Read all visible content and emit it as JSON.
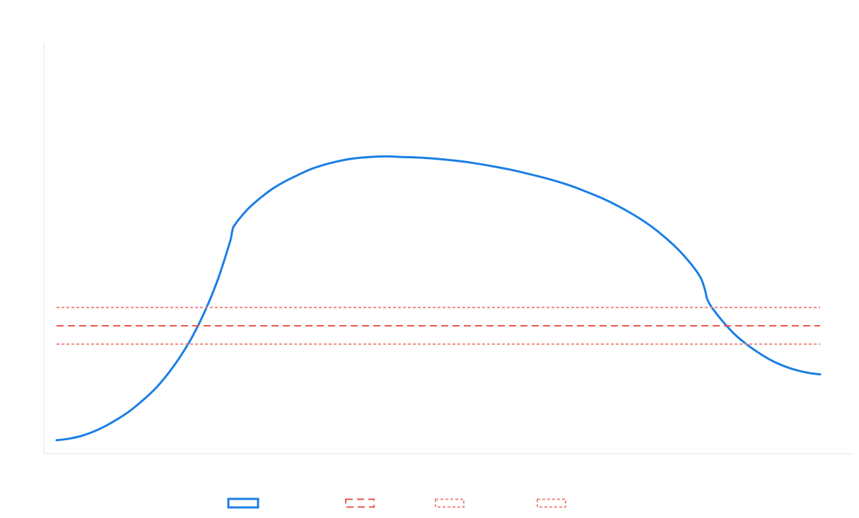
{
  "chart_data": {
    "type": "line",
    "title": "",
    "xlabel": "",
    "ylabel": "",
    "xlim": [
      0,
      100
    ],
    "ylim": [
      0,
      100
    ],
    "grid": false,
    "legend_position": "bottom",
    "series": [
      {
        "color": "#1a7ee6",
        "style": "solid",
        "x": [
          0,
          1.6,
          3.2,
          4.9,
          6.5,
          8.1,
          9.7,
          11.3,
          13,
          14.6,
          16.2,
          17.8,
          19.4,
          21.1,
          22.7,
          23,
          23.3,
          25,
          26.7,
          28.3,
          30,
          31.7,
          33.3,
          35,
          36.7,
          38.3,
          40,
          41.7,
          43.3,
          45,
          47.4,
          49.8,
          52.2,
          54.6,
          57,
          59.5,
          61.9,
          64.3,
          66.7,
          69.1,
          71.6,
          74,
          76.4,
          78.8,
          81.2,
          83.2,
          84.4,
          85,
          85.2,
          85.8,
          87.3,
          88.9,
          90.6,
          92.3,
          93.9,
          95.6,
          97.3,
          98.9,
          100
        ],
        "y": [
          0,
          0.5,
          1.4,
          2.9,
          4.8,
          7.1,
          9.8,
          13.1,
          17.1,
          21.8,
          27.4,
          34,
          42.1,
          52.5,
          64.9,
          68.4,
          70.4,
          75.6,
          79.4,
          82.4,
          84.9,
          87,
          88.8,
          90.2,
          91.3,
          92.1,
          92.6,
          92.9,
          93,
          92.8,
          92.6,
          92.2,
          91.6,
          90.8,
          89.8,
          88.6,
          87.2,
          85.7,
          83.9,
          81.7,
          79.1,
          76.1,
          72.6,
          68.3,
          63,
          57.4,
          53,
          48.5,
          46.3,
          43.6,
          38.8,
          34.5,
          31,
          28.1,
          25.8,
          24,
          22.7,
          21.9,
          21.6
        ]
      },
      {
        "color": "#e8564a",
        "style": "dashed",
        "value": 37.5
      },
      {
        "color": "#ec8a80",
        "style": "dotted",
        "value": 43.5
      },
      {
        "color": "#ec8a80",
        "style": "dotted",
        "value": 31.5
      }
    ]
  }
}
